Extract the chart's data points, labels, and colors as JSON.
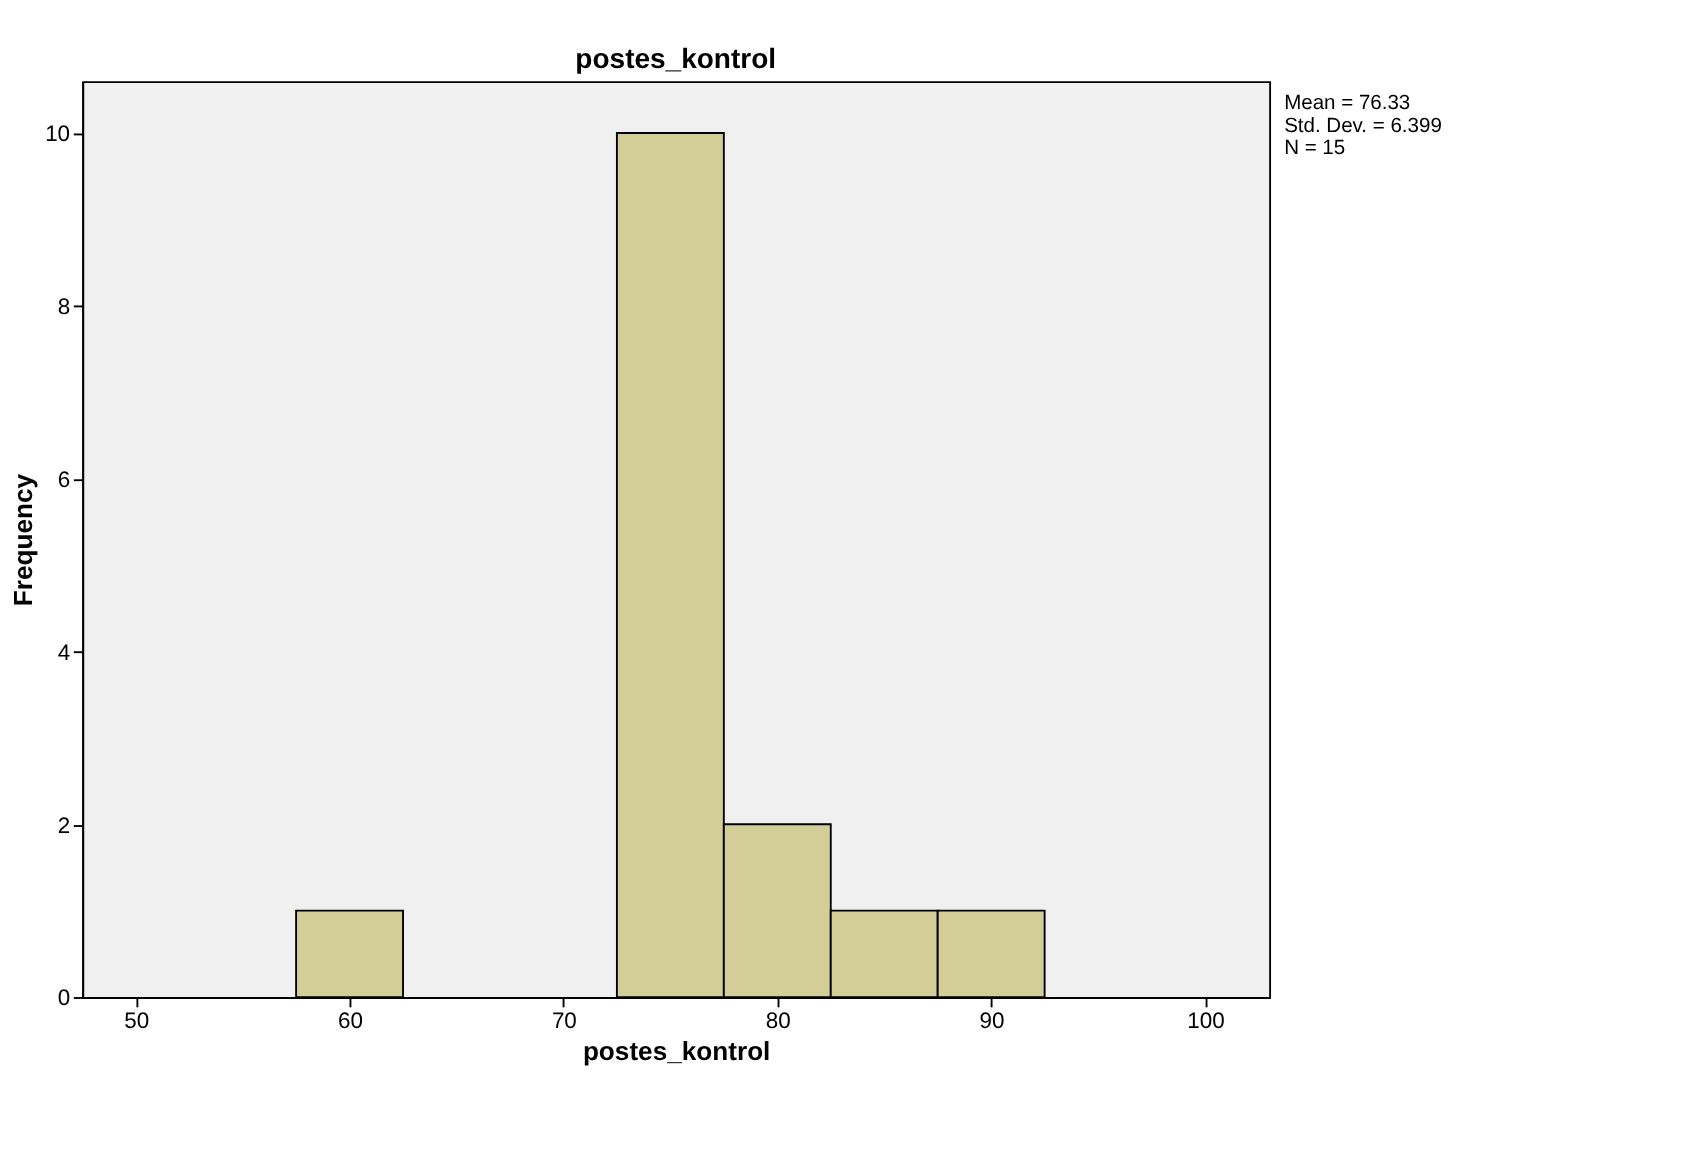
{
  "chart_data": {
    "type": "histogram",
    "title": "postes_kontrol",
    "xlabel": "postes_kontrol",
    "ylabel": "Frequency",
    "bins": [
      57.5,
      62.5,
      67.5,
      72.5,
      77.5,
      82.5,
      87.5,
      92.5
    ],
    "values": [
      1,
      0,
      0,
      10,
      2,
      1,
      1
    ],
    "color": "#d3ce97",
    "xlim": [
      47.5,
      103
    ],
    "xticks": [
      50,
      60,
      70,
      80,
      90,
      100
    ],
    "ylim": [
      0,
      10.6
    ],
    "yticks": [
      0,
      2,
      4,
      6,
      8,
      10
    ],
    "grid": false,
    "annotations": [
      "Mean = 76.33",
      "Std. Dev. = 6.399",
      "N = 15"
    ]
  }
}
